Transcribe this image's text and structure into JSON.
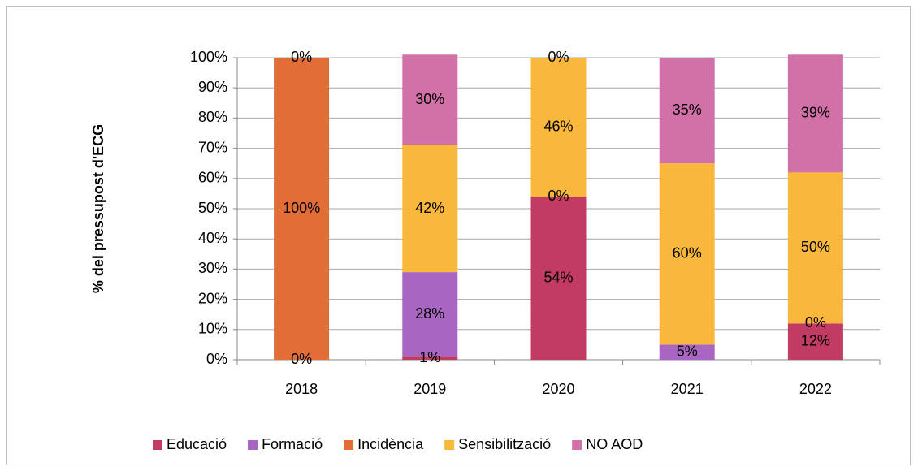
{
  "chart_data": {
    "type": "stacked_bar_100",
    "y_label": "% del pressupost d'ECG",
    "categories": [
      "2018",
      "2019",
      "2020",
      "2021",
      "2022"
    ],
    "series": [
      {
        "name": "Educació",
        "color": "#c23b63",
        "values": [
          0,
          1,
          54,
          null,
          12
        ],
        "value_labels": [
          "0%",
          "1%",
          "54%",
          null,
          "12%"
        ]
      },
      {
        "name": "Formació",
        "color": "#a866c2",
        "values": [
          null,
          28,
          0,
          5,
          0
        ],
        "value_labels": [
          null,
          "28%",
          "0%",
          "5%",
          "0%"
        ]
      },
      {
        "name": "Incidència",
        "color": "#e26d37",
        "values": [
          100,
          null,
          null,
          null,
          null
        ],
        "value_labels": [
          "100%",
          null,
          null,
          null,
          null
        ]
      },
      {
        "name": "Sensibilització",
        "color": "#f9b83b",
        "values": [
          null,
          42,
          46,
          60,
          50
        ],
        "value_labels": [
          null,
          "42%",
          "46%",
          "60%",
          "50%"
        ]
      },
      {
        "name": "NO AOD",
        "color": "#d270a8",
        "values": [
          0,
          30,
          0,
          35,
          39
        ],
        "value_labels": [
          "0%",
          "30%",
          "0%",
          "35%",
          "39%"
        ]
      }
    ],
    "ylim": [
      0,
      100
    ],
    "yticks": [
      {
        "value": 0,
        "label": "0%"
      },
      {
        "value": 10,
        "label": "10%"
      },
      {
        "value": 20,
        "label": "20%"
      },
      {
        "value": 30,
        "label": "30%"
      },
      {
        "value": 40,
        "label": "40%"
      },
      {
        "value": 50,
        "label": "50%"
      },
      {
        "value": 60,
        "label": "60%"
      },
      {
        "value": 70,
        "label": "70%"
      },
      {
        "value": 80,
        "label": "80%"
      },
      {
        "value": 90,
        "label": "90%"
      },
      {
        "value": 100,
        "label": "100%"
      }
    ],
    "grid": true,
    "legend": "bottom"
  }
}
